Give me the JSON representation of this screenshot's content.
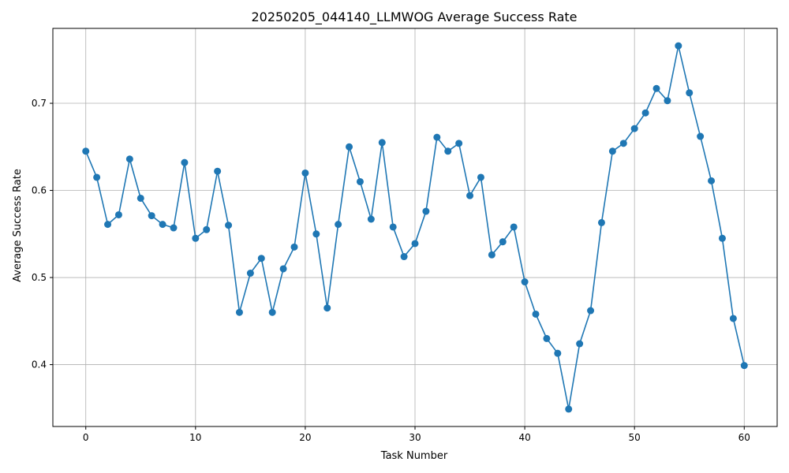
{
  "chart_data": {
    "type": "line",
    "title": "20250205_044140_LLMWOG Average Success Rate",
    "xlabel": "Task Number",
    "ylabel": "Average Success Rate",
    "xlim": [
      -3,
      63
    ],
    "ylim": [
      0.329,
      0.786
    ],
    "xticks": [
      0,
      10,
      20,
      30,
      40,
      50,
      60
    ],
    "yticks": [
      0.4,
      0.5,
      0.6,
      0.7
    ],
    "xtick_labels": [
      "0",
      "10",
      "20",
      "30",
      "40",
      "50",
      "60"
    ],
    "ytick_labels": [
      "0.4",
      "0.5",
      "0.6",
      "0.7"
    ],
    "grid": true,
    "marker": "circle",
    "color": "#1f77b4",
    "x": [
      0,
      1,
      2,
      3,
      4,
      5,
      6,
      7,
      8,
      9,
      10,
      11,
      12,
      13,
      14,
      15,
      16,
      17,
      18,
      19,
      20,
      21,
      22,
      23,
      24,
      25,
      26,
      27,
      28,
      29,
      30,
      31,
      32,
      33,
      34,
      35,
      36,
      37,
      38,
      39,
      40,
      41,
      42,
      43,
      44,
      45,
      46,
      47,
      48,
      49,
      50,
      51,
      52,
      53,
      54,
      55,
      56,
      57,
      58,
      59,
      60
    ],
    "y": [
      0.645,
      0.615,
      0.561,
      0.572,
      0.636,
      0.591,
      0.571,
      0.561,
      0.557,
      0.632,
      0.545,
      0.555,
      0.622,
      0.56,
      0.46,
      0.505,
      0.522,
      0.46,
      0.51,
      0.535,
      0.62,
      0.55,
      0.465,
      0.561,
      0.65,
      0.61,
      0.567,
      0.655,
      0.558,
      0.524,
      0.539,
      0.576,
      0.661,
      0.645,
      0.654,
      0.594,
      0.615,
      0.526,
      0.541,
      0.558,
      0.495,
      0.458,
      0.43,
      0.413,
      0.349,
      0.424,
      0.462,
      0.563,
      0.645,
      0.654,
      0.671,
      0.689,
      0.717,
      0.703,
      0.766,
      0.712,
      0.662,
      0.611,
      0.545,
      0.453,
      0.399
    ]
  }
}
